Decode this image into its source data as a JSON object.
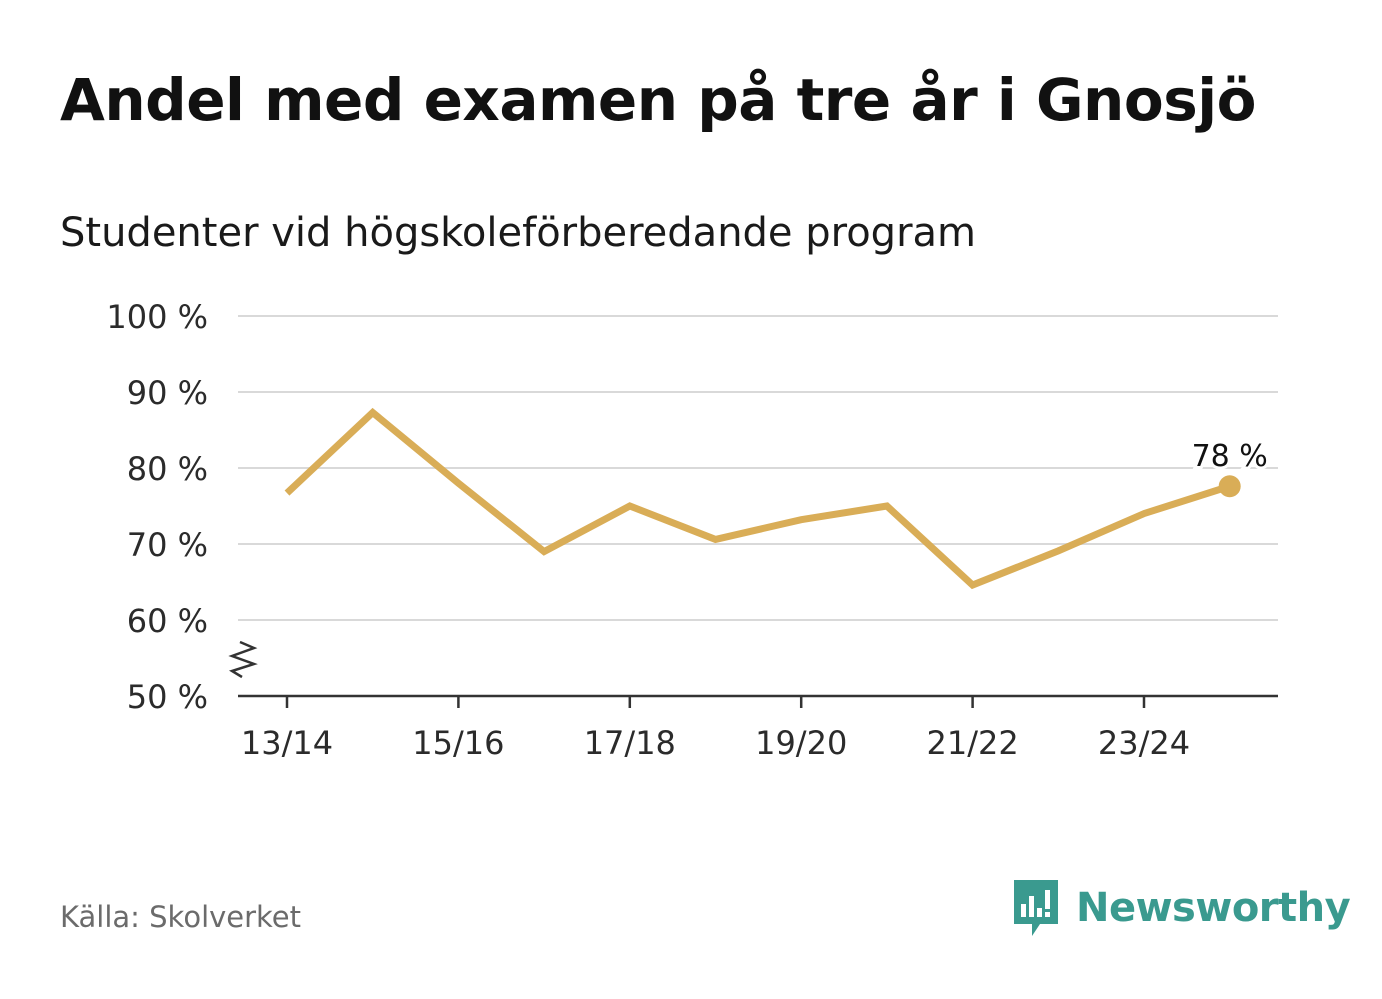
{
  "header": {
    "title": "Andel med examen på tre år i Gnosjö",
    "subtitle": "Studenter vid högskoleförberedande program"
  },
  "footer": {
    "source": "Källa: Skolverket",
    "brand": "Newsworthy"
  },
  "colors": {
    "line": "#d9ad57",
    "grid": "#d9d9d9",
    "axis": "#333333",
    "brand": "#3a9a8f"
  },
  "chart_data": {
    "type": "line",
    "title": "Andel med examen på tre år i Gnosjö",
    "subtitle": "Studenter vid högskoleförberedande program",
    "xlabel": "",
    "ylabel": "",
    "categories": [
      "13/14",
      "14/15",
      "15/16",
      "16/17",
      "17/18",
      "18/19",
      "19/20",
      "20/21",
      "21/22",
      "22/23",
      "23/24",
      "24/25"
    ],
    "x_tick_labels": [
      "13/14",
      "15/16",
      "17/18",
      "19/20",
      "21/22",
      "23/24"
    ],
    "series": [
      {
        "name": "Andel med examen på tre år",
        "values": [
          76.7,
          87.3,
          78.0,
          69.0,
          75.0,
          70.6,
          73.2,
          75.0,
          64.6,
          69.1,
          74.0,
          77.6
        ]
      }
    ],
    "ylim": [
      50,
      100
    ],
    "y_ticks": [
      50,
      60,
      70,
      80,
      90,
      100
    ],
    "y_tick_labels": [
      "50 %",
      "60 %",
      "70 %",
      "80 %",
      "90 %",
      "100 %"
    ],
    "axis_break": true,
    "grid": true,
    "last_value_label": "78 %"
  }
}
